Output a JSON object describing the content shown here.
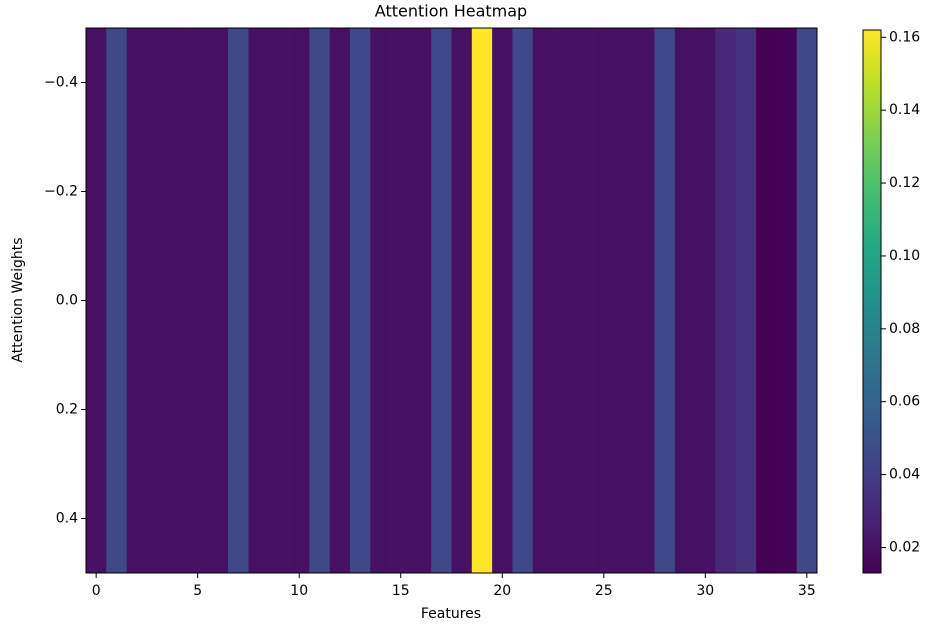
{
  "chart_data": {
    "type": "heatmap",
    "title": "Attention Heatmap",
    "x_label": "Features",
    "y_label": "Attention Weights",
    "colormap": "viridis",
    "values": [
      [
        0.02,
        0.045,
        0.02,
        0.02,
        0.02,
        0.02,
        0.02,
        0.045,
        0.02,
        0.02,
        0.02,
        0.045,
        0.02,
        0.045,
        0.02,
        0.02,
        0.02,
        0.045,
        0.02,
        0.162,
        0.02,
        0.045,
        0.02,
        0.02,
        0.02,
        0.02,
        0.02,
        0.02,
        0.045,
        0.02,
        0.02,
        0.03,
        0.035,
        0.013,
        0.014,
        0.045
      ]
    ],
    "xlim": [
      -0.5,
      35.5
    ],
    "xticks": [
      0,
      5,
      10,
      15,
      20,
      25,
      30,
      35
    ],
    "ylim": [
      0.5,
      -0.5
    ],
    "yticks": [
      {
        "value": -0.4,
        "label": "−0.4"
      },
      {
        "value": -0.2,
        "label": "−0.2"
      },
      {
        "value": 0,
        "label": "0.0"
      },
      0.2,
      0.4
    ],
    "clim": [
      0.013,
      0.162
    ],
    "cticks": [
      0.02,
      0.04,
      0.06,
      0.08,
      {
        "value": 0.1,
        "label": "0.10"
      },
      0.12,
      0.14,
      0.16
    ]
  }
}
